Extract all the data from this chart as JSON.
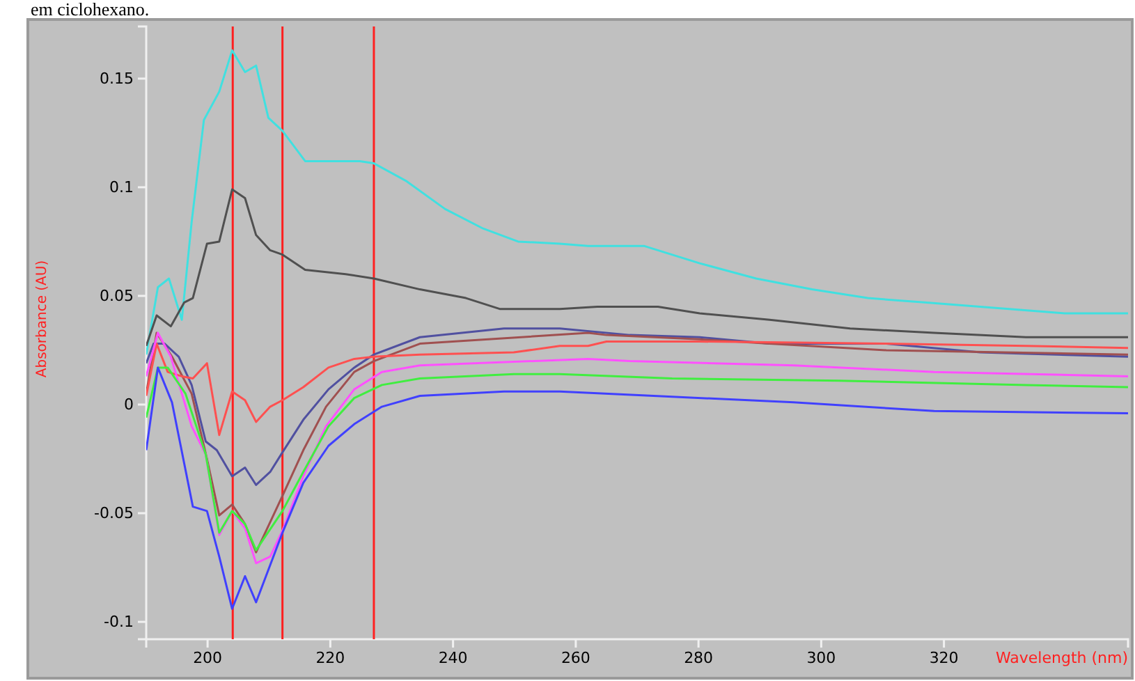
{
  "chart_data": {
    "type": "line",
    "xlabel": "Wavelength (nm)",
    "ylabel": "Absorbance (AU)",
    "annotations": [
      "em ciclohexano."
    ],
    "xlim": [
      190,
      350
    ],
    "xticks": [
      200,
      220,
      240,
      260,
      280,
      300,
      320
    ],
    "ylim": [
      -0.108,
      0.174
    ],
    "yticks": [
      -0.1,
      -0.05,
      0,
      0.05,
      0.1,
      0.15
    ],
    "marker": "none",
    "line_style": "solid",
    "ref_lines": [
      {
        "axis": "x",
        "value": 204.1,
        "color": "#ff2020"
      },
      {
        "axis": "x",
        "value": 212.2,
        "color": "#ff2020"
      },
      {
        "axis": "x",
        "value": 227.1,
        "color": "#ff2020"
      }
    ],
    "series": [
      {
        "color": "#40e0e0",
        "x": [
          190,
          191.9,
          193.7,
          195.8,
          197.4,
          199.4,
          201.9,
          204,
          206.1,
          207.9,
          209.9,
          212.2,
          215.9,
          220.4,
          224.8,
          227.1,
          232.3,
          238.7,
          244.9,
          250.6,
          257.4,
          262,
          271.1,
          280.2,
          289.4,
          298.5,
          307.6,
          316.8,
          325.9,
          339.6,
          350
        ],
        "values": [
          0.023,
          0.054,
          0.058,
          0.039,
          0.084,
          0.131,
          0.144,
          0.163,
          0.153,
          0.156,
          0.132,
          0.126,
          0.112,
          0.112,
          0.112,
          0.111,
          0.103,
          0.09,
          0.081,
          0.075,
          0.074,
          0.073,
          0.073,
          0.065,
          0.058,
          0.053,
          0.049,
          0.047,
          0.045,
          0.042,
          0.042
        ]
      },
      {
        "color": "#505050",
        "x": [
          190,
          191.7,
          194,
          196.2,
          197.6,
          199.9,
          201.9,
          204,
          206.1,
          207.9,
          210.2,
          212.2,
          215.9,
          222.5,
          227.1,
          234.6,
          242.1,
          247.6,
          257.4,
          263.5,
          273.4,
          280.2,
          291.6,
          304.7,
          318.4,
          333.4,
          350
        ],
        "values": [
          0.027,
          0.041,
          0.036,
          0.047,
          0.049,
          0.074,
          0.075,
          0.099,
          0.095,
          0.078,
          0.071,
          0.069,
          0.062,
          0.06,
          0.058,
          0.053,
          0.049,
          0.044,
          0.044,
          0.045,
          0.045,
          0.042,
          0.039,
          0.035,
          0.033,
          0.031,
          0.031
        ]
      },
      {
        "color": "#5050a0",
        "x": [
          190,
          191.2,
          193,
          195.3,
          197.4,
          199.7,
          201.5,
          204,
          206.1,
          207.9,
          210.2,
          212.2,
          215.6,
          219.7,
          223.9,
          227.1,
          234.6,
          248.3,
          257.4,
          268.8,
          280.2,
          291.6,
          310.6,
          325.9,
          350
        ],
        "values": [
          0.019,
          0.028,
          0.028,
          0.022,
          0.009,
          -0.017,
          -0.021,
          -0.033,
          -0.029,
          -0.037,
          -0.031,
          -0.022,
          -0.007,
          0.007,
          0.017,
          0.023,
          0.031,
          0.035,
          0.035,
          0.032,
          0.031,
          0.028,
          0.028,
          0.024,
          0.022
        ]
      },
      {
        "color": "#a05050",
        "x": [
          190,
          191.7,
          194.2,
          197.4,
          199.9,
          201.9,
          204,
          206.1,
          207.9,
          212.2,
          215.6,
          219.3,
          223.9,
          227.1,
          234.6,
          262,
          265,
          280.2,
          291.6,
          310.6,
          350
        ],
        "values": [
          0.005,
          0.033,
          0.022,
          0.005,
          -0.025,
          -0.051,
          -0.046,
          -0.055,
          -0.068,
          -0.042,
          -0.021,
          -0.001,
          0.015,
          0.02,
          0.028,
          0.033,
          0.032,
          0.03,
          0.028,
          0.025,
          0.023
        ]
      },
      {
        "color": "#ff5050",
        "x": [
          190,
          191.7,
          193.5,
          195.8,
          197.6,
          199.9,
          201.9,
          204,
          206.1,
          207.9,
          210.2,
          212.2,
          215.6,
          219.7,
          223.9,
          227.1,
          234.6,
          249.9,
          257.4,
          262,
          265,
          280.2,
          310.6,
          333.4,
          350
        ],
        "values": [
          0.004,
          0.028,
          0.015,
          0.013,
          0.012,
          0.019,
          -0.014,
          0.006,
          0.002,
          -0.008,
          -0.001,
          0.002,
          0.008,
          0.017,
          0.021,
          0.022,
          0.023,
          0.024,
          0.027,
          0.027,
          0.029,
          0.029,
          0.028,
          0.027,
          0.026
        ]
      },
      {
        "color": "#ff50ff",
        "x": [
          190,
          191.9,
          194,
          197.4,
          199.7,
          201.9,
          204,
          206.1,
          207.9,
          210.2,
          212.2,
          215.6,
          219.3,
          223.9,
          228.4,
          234.6,
          262,
          268.8,
          295.5,
          318.4,
          350
        ],
        "values": [
          0.013,
          0.033,
          0.022,
          -0.01,
          -0.023,
          -0.06,
          -0.049,
          -0.057,
          -0.073,
          -0.07,
          -0.058,
          -0.033,
          -0.01,
          0.007,
          0.015,
          0.018,
          0.021,
          0.02,
          0.018,
          0.015,
          0.013
        ]
      },
      {
        "color": "#40ee40",
        "x": [
          190,
          191.9,
          193.5,
          196.4,
          199.7,
          201.9,
          204,
          206.1,
          207.9,
          212.2,
          215.6,
          219.7,
          223.9,
          228.4,
          234.6,
          249.9,
          257.4,
          275.7,
          303,
          333.4,
          350
        ],
        "values": [
          -0.006,
          0.017,
          0.017,
          0.005,
          -0.023,
          -0.059,
          -0.049,
          -0.055,
          -0.067,
          -0.049,
          -0.031,
          -0.01,
          0.003,
          0.009,
          0.012,
          0.014,
          0.014,
          0.012,
          0.011,
          0.009,
          0.008
        ]
      },
      {
        "color": "#4040ff",
        "x": [
          190,
          191.9,
          194.2,
          197.6,
          199.9,
          201.9,
          204,
          206.1,
          207.9,
          212.2,
          215.6,
          219.7,
          223.9,
          228.4,
          234.6,
          248.3,
          257.4,
          272.7,
          295.5,
          318.4,
          350
        ],
        "values": [
          -0.021,
          0.017,
          0.001,
          -0.047,
          -0.049,
          -0.07,
          -0.094,
          -0.079,
          -0.091,
          -0.059,
          -0.036,
          -0.019,
          -0.009,
          -0.001,
          0.004,
          0.006,
          0.006,
          0.004,
          0.001,
          -0.003,
          -0.004
        ]
      }
    ]
  }
}
